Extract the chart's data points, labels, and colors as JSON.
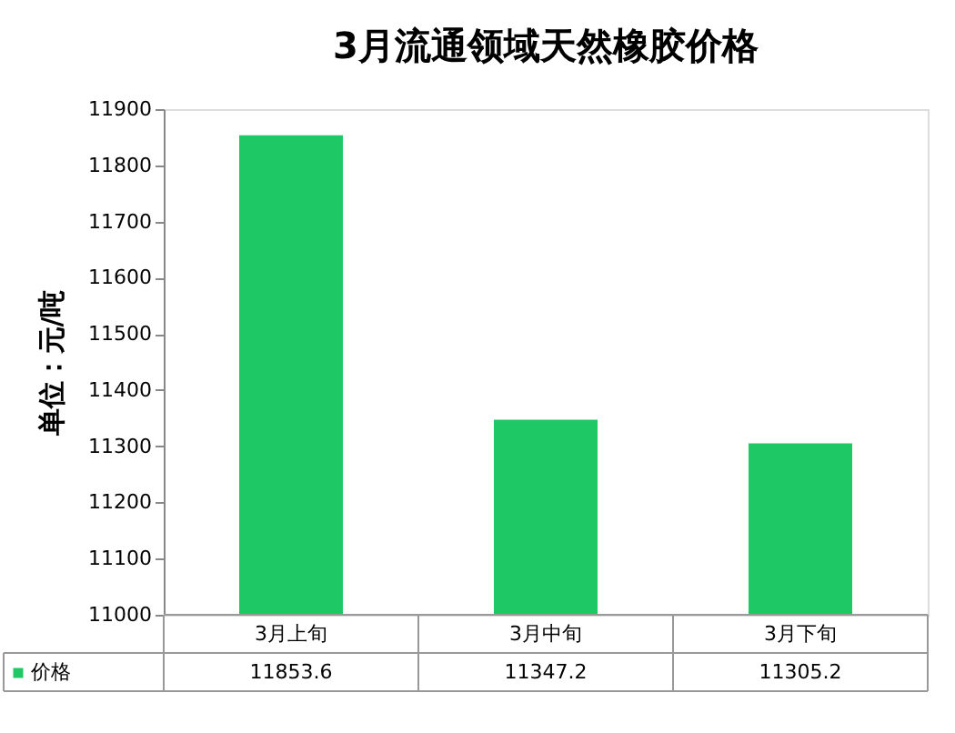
{
  "chart_data": {
    "type": "bar",
    "title": "3月流通领域天然橡胶价格",
    "ylabel": "单位：元/吨",
    "categories": [
      "3月上旬",
      "3月中旬",
      "3月下旬"
    ],
    "series": [
      {
        "name": "价格",
        "color": "#1ec864",
        "values": [
          11853.6,
          11347.2,
          11305.2
        ]
      }
    ],
    "ylim": [
      11000,
      11900
    ],
    "yticks": [
      11000,
      11100,
      11200,
      11300,
      11400,
      11500,
      11600,
      11700,
      11800,
      11900
    ],
    "data_labels": true,
    "legend": "bottom",
    "grid": false
  }
}
